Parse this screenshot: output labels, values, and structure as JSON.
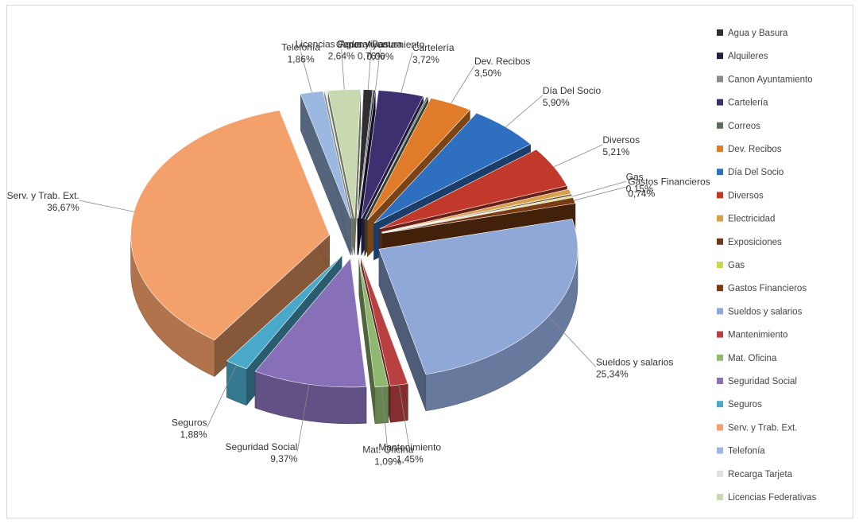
{
  "chart_data": {
    "type": "pie",
    "title": "",
    "legend_position": "right",
    "categories": [
      "Agua y Basura",
      "Alquileres",
      "Canon Ayuntamiento",
      "Cartelería",
      "Correos",
      "Dev. Recibos",
      "Día Del Socio",
      "Diversos",
      "Electricidad",
      "Exposiciones",
      "Gas",
      "Gastos Financieros",
      "Sueldos y salarios",
      "Mantenimiento",
      "Mat. Oficina",
      "Seguridad Social",
      "Seguros",
      "Serv. y Trab. Ext.",
      "Telefonía",
      "Recarga Tarjeta",
      "Licencias Federativas"
    ],
    "legend_labels": [
      "Agua y Basura",
      "Alquileres",
      "Canon Ayuntamiento",
      "Cartelería",
      "Correos",
      "Dev. Recibos",
      "Día Del Socio",
      "Diversos",
      "Electricidad",
      "Exposiciones",
      "Gas",
      "Gastos Financieros",
      "Sueldos y salarios",
      "Mantenimiento",
      "Mat. Oficina",
      "Seguridad Social",
      "Seguros",
      "Serv. y Trab. Ext.",
      "Telefonía",
      "Recarga Tarjeta",
      "Licencias Federativas"
    ],
    "values": [
      0.76,
      0.15,
      0.0,
      3.72,
      0.15,
      3.5,
      5.9,
      5.21,
      0.6,
      0.2,
      0.15,
      0.74,
      25.34,
      1.45,
      1.09,
      9.37,
      1.88,
      36.67,
      1.86,
      0.1,
      2.64
    ],
    "colors": [
      "#2f2f2f",
      "#1f1f3f",
      "#8a8a8a",
      "#3d2f70",
      "#5a6e5a",
      "#e07b2a",
      "#2f6fc0",
      "#c0392b",
      "#d9a04a",
      "#6a3a1a",
      "#c8d84a",
      "#7a3b12",
      "#8fa8d8",
      "#b84040",
      "#8fb870",
      "#8870b8",
      "#4aa8c8",
      "#f4a06a",
      "#9ab8e0",
      "#dfe0dd",
      "#c8d8b0"
    ],
    "data_labels": [
      {
        "name": "Agua y Basura",
        "pct": "0,76%"
      },
      {
        "name": "Canon Ayuntamiento",
        "pct": "0,00%"
      },
      {
        "name": "Cartelería",
        "pct": "3,72%"
      },
      {
        "name": "Dev. Recibos",
        "pct": "3,50%"
      },
      {
        "name": "Día Del Socio",
        "pct": "5,90%"
      },
      {
        "name": "Diversos",
        "pct": "5,21%"
      },
      {
        "name": "Gas",
        "pct": "0,15%"
      },
      {
        "name": "Gastos Financieros",
        "pct": "0,74%"
      },
      {
        "name": "Sueldos y salarios",
        "pct": "25,34%"
      },
      {
        "name": "Mantenimiento",
        "pct": "1,45%"
      },
      {
        "name": "Mat. Oficina",
        "pct": "1,09%"
      },
      {
        "name": "Seguridad Social",
        "pct": "9,37%"
      },
      {
        "name": "Seguros",
        "pct": "1,88%"
      },
      {
        "name": "Serv. y Trab. Ext.",
        "pct": "36,67%"
      },
      {
        "name": "Telefonía",
        "pct": "1,86%"
      },
      {
        "name": "Licencias Federativas",
        "pct": "2,64%"
      }
    ]
  }
}
